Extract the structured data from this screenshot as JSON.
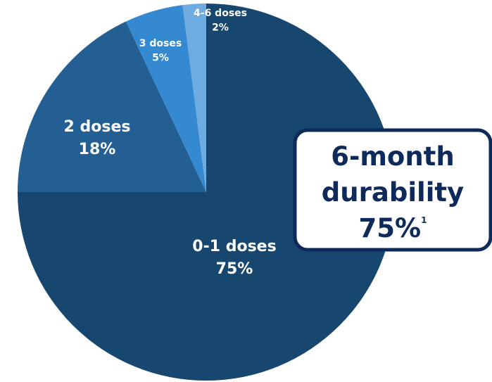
{
  "chart_data": {
    "type": "pie",
    "categories": [
      "0-1 doses",
      "2 doses",
      "3 doses",
      "4-6 doses"
    ],
    "values": [
      75,
      18,
      5,
      2
    ],
    "value_labels": [
      "75%",
      "18%",
      "5%",
      "2%"
    ],
    "colors": [
      "#17466f",
      "#235f93",
      "#3589d1",
      "#6eabe1"
    ],
    "annotation": {
      "lines": [
        "6-month",
        "durability"
      ],
      "value": "75%",
      "note": "1"
    }
  }
}
